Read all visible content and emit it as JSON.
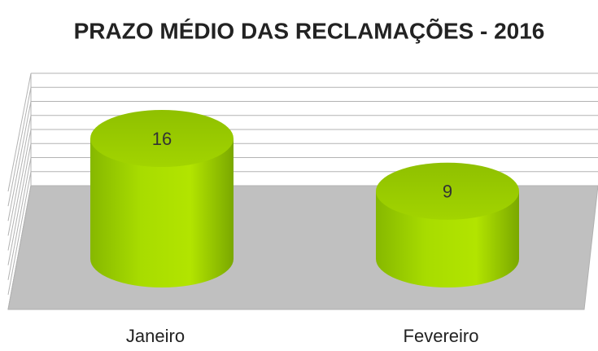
{
  "chart_data": {
    "type": "bar",
    "title": "PRAZO MÉDIO DAS RECLAMAÇÕES - 2016",
    "categories": [
      "Janeiro",
      "Fevereiro"
    ],
    "values": [
      16,
      9
    ],
    "color": "#99cc00",
    "ylim": [
      0,
      16
    ],
    "yticks": [
      0,
      2,
      4,
      6,
      8,
      10,
      12,
      14,
      16
    ],
    "grid": true
  }
}
